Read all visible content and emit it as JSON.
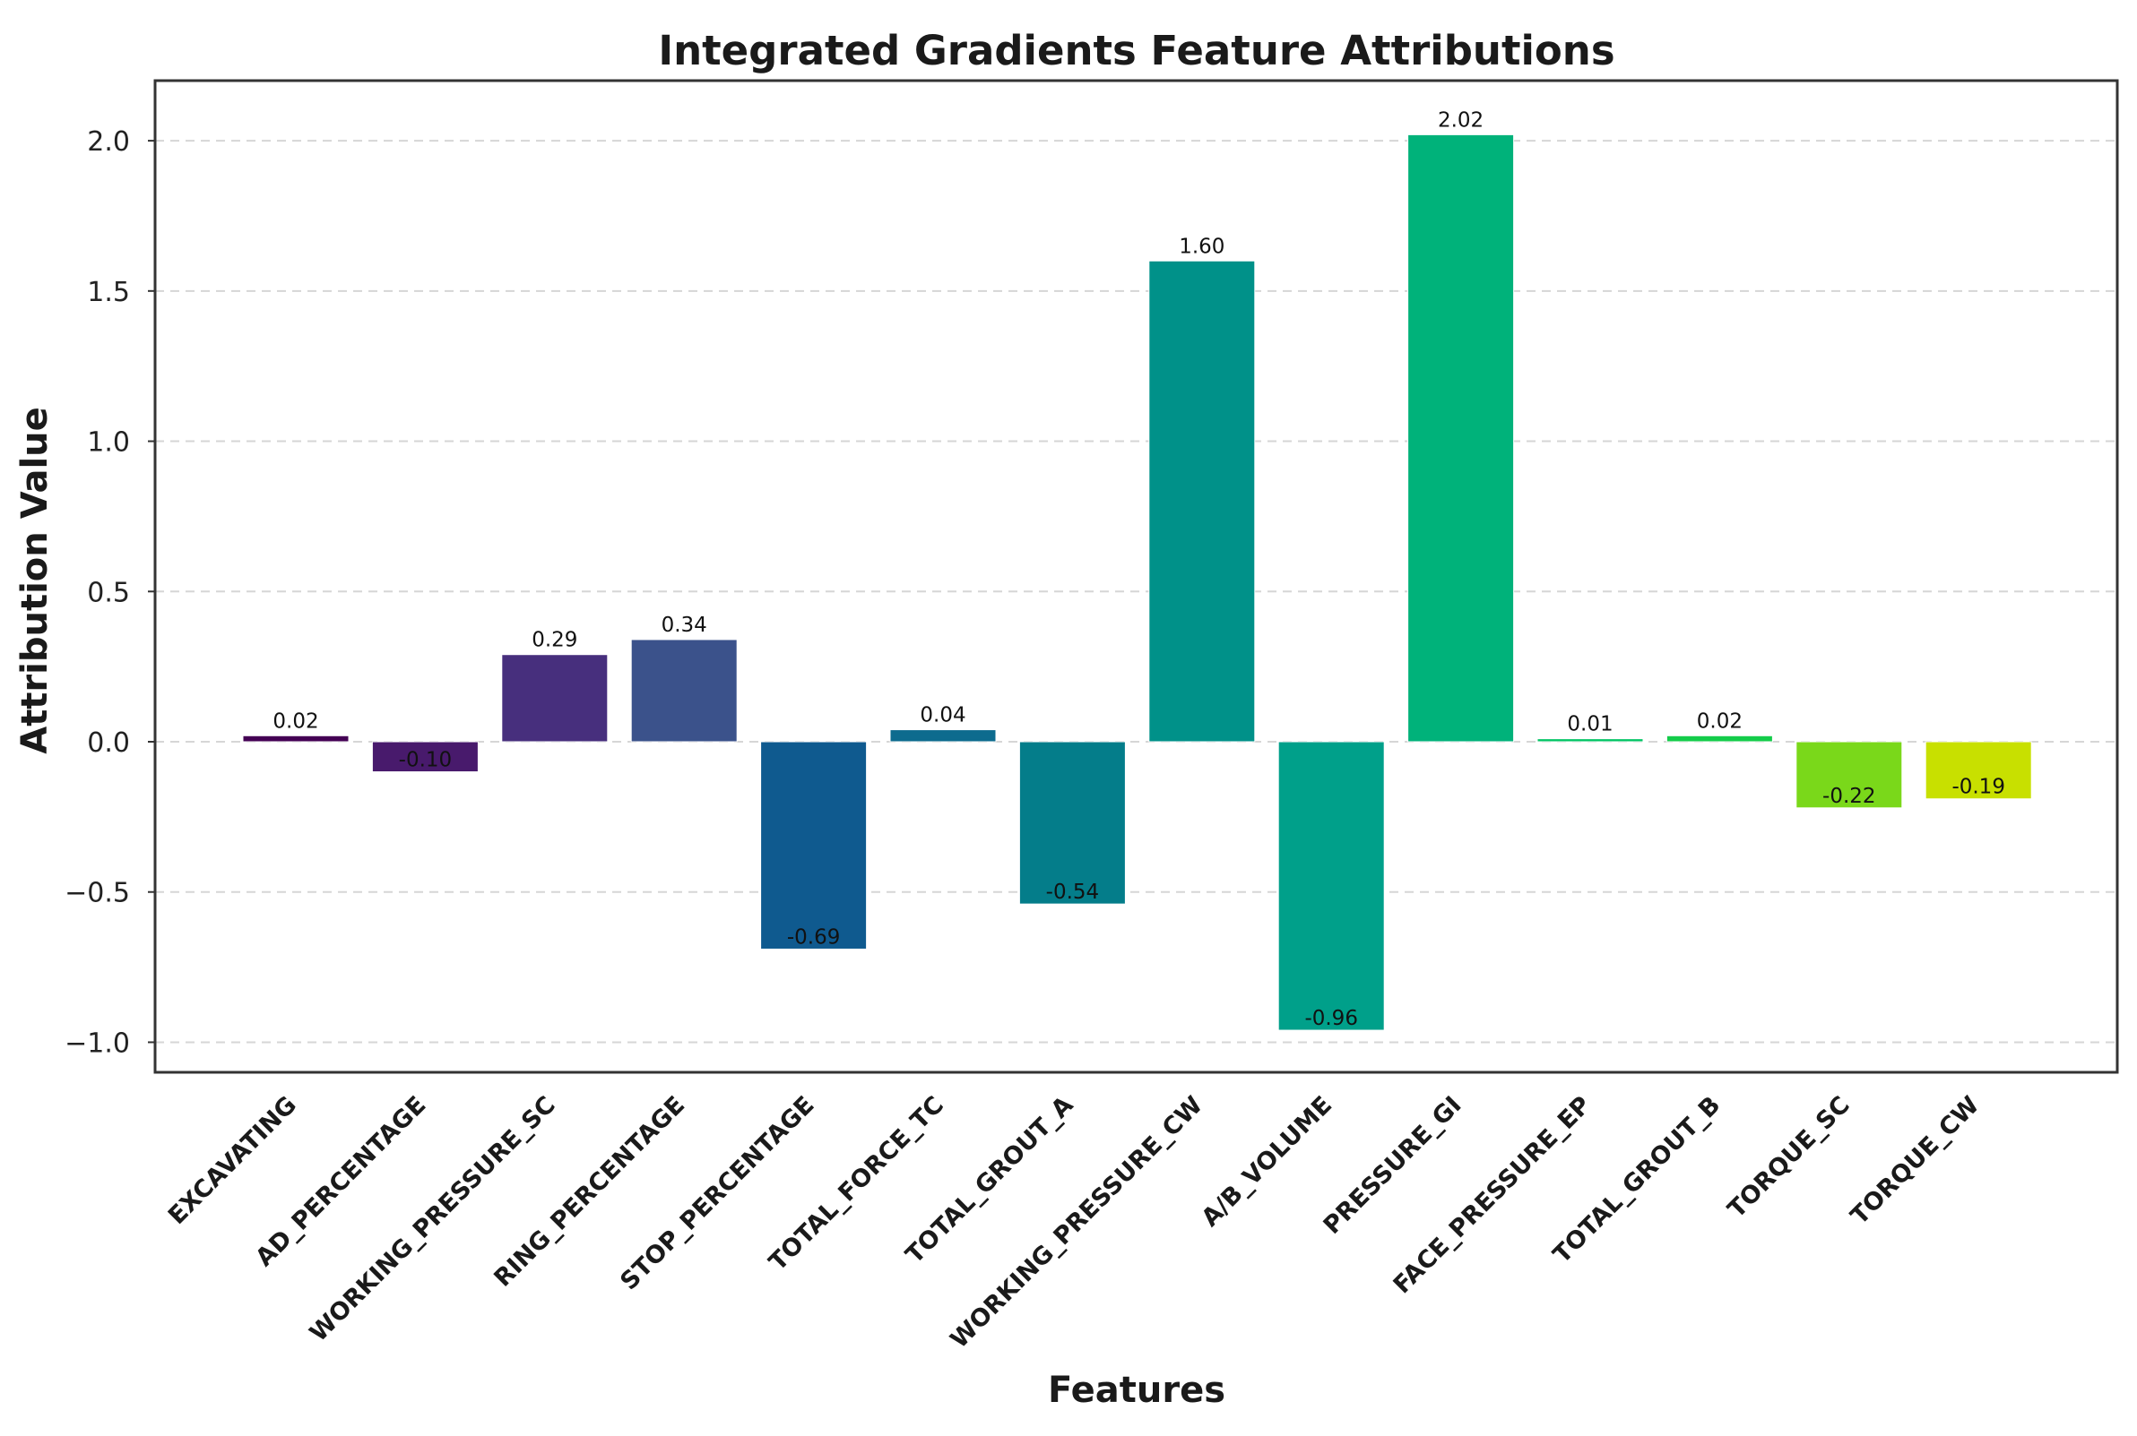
{
  "chart_data": {
    "type": "bar",
    "title": "Integrated Gradients Feature Attributions",
    "xlabel": "Features",
    "ylabel": "Attribution Value",
    "ylim": [
      -1.1,
      2.2
    ],
    "yticks": [
      -1.0,
      -0.5,
      0.0,
      0.5,
      1.0,
      1.5,
      2.0
    ],
    "ytick_labels": [
      "−1.0",
      "−0.5",
      "0.0",
      "0.5",
      "1.0",
      "1.5",
      "2.0"
    ],
    "grid": "horizontal-dashed",
    "categories": [
      "EXCAVATING",
      "AD_PERCENTAGE",
      "WORKING_PRESSURE_SC",
      "RING_PERCENTAGE",
      "STOP_PERCENTAGE",
      "TOTAL_FORCE_TC",
      "TOTAL_GROUT_A",
      "WORKING_PRESSURE_CW",
      "A/B_VOLUME",
      "PRESSURE_GI",
      "FACE_PRESSURE_EP",
      "TOTAL_GROUT_B",
      "TORQUE_SC",
      "TORQUE_CW"
    ],
    "values": [
      0.02,
      -0.1,
      0.29,
      0.34,
      -0.69,
      0.04,
      -0.54,
      1.6,
      -0.96,
      2.02,
      0.01,
      0.02,
      -0.22,
      -0.19
    ],
    "value_labels": [
      "0.02",
      "-0.10",
      "0.29",
      "0.34",
      "-0.69",
      "0.04",
      "-0.54",
      "1.60",
      "-0.96",
      "2.02",
      "0.01",
      "0.02",
      "-0.22",
      "-0.19"
    ],
    "colors": [
      "#440154",
      "#481a6c",
      "#472f7d",
      "#3b528b",
      "#0f5a8f",
      "#0d6b8e",
      "#047d8a",
      "#009189",
      "#00a08a",
      "#00b27a",
      "#00c463",
      "#14cc4a",
      "#7ad81a",
      "#c8e000"
    ]
  }
}
